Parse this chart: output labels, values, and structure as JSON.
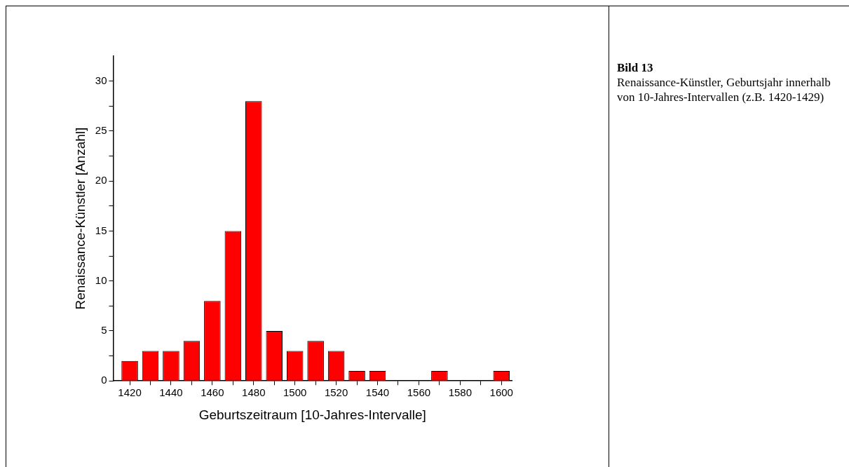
{
  "chart_data": {
    "type": "bar",
    "title": "Bild 13",
    "annotations": [
      "Renaissance-Künstler, Geburtsjahr innerhalb von 10-Jahres-Intervallen (z.B. 1420-1429)"
    ],
    "xlabel": "Geburtszeitraum [10-Jahres-Intervalle]",
    "ylabel": "Renaissance-Künstler [Anzahl]",
    "x": [
      1420,
      1430,
      1440,
      1450,
      1460,
      1470,
      1480,
      1490,
      1500,
      1510,
      1520,
      1530,
      1540,
      1550,
      1560,
      1570,
      1580,
      1590,
      1600
    ],
    "values": [
      2,
      3,
      3,
      4,
      8,
      15,
      28,
      5,
      3,
      4,
      3,
      1,
      1,
      0,
      0,
      1,
      0,
      0,
      1
    ],
    "color": "#ff0000",
    "xlim": [
      1412,
      1605
    ],
    "xticks": [
      1420,
      {
        "value": 1430,
        "label": null
      },
      1440,
      {
        "value": 1450,
        "label": null
      },
      1460,
      {
        "value": 1470,
        "label": null
      },
      1480,
      {
        "value": 1490,
        "label": null
      },
      1500,
      {
        "value": 1510,
        "label": null
      },
      1520,
      {
        "value": 1530,
        "label": null
      },
      1540,
      {
        "value": 1550,
        "label": null
      },
      1560,
      {
        "value": 1570,
        "label": null
      },
      1580,
      {
        "value": 1590,
        "label": null
      },
      1600
    ],
    "ylim": [
      0,
      32.5
    ],
    "yticks": [
      0,
      {
        "value": 2.5,
        "label": null
      },
      5,
      {
        "value": 7.5,
        "label": null
      },
      10,
      {
        "value": 12.5,
        "label": null
      },
      15,
      {
        "value": 17.5,
        "label": null
      },
      20,
      {
        "value": 22.5,
        "label": null
      },
      25,
      {
        "value": 27.5,
        "label": null
      },
      30
    ]
  }
}
